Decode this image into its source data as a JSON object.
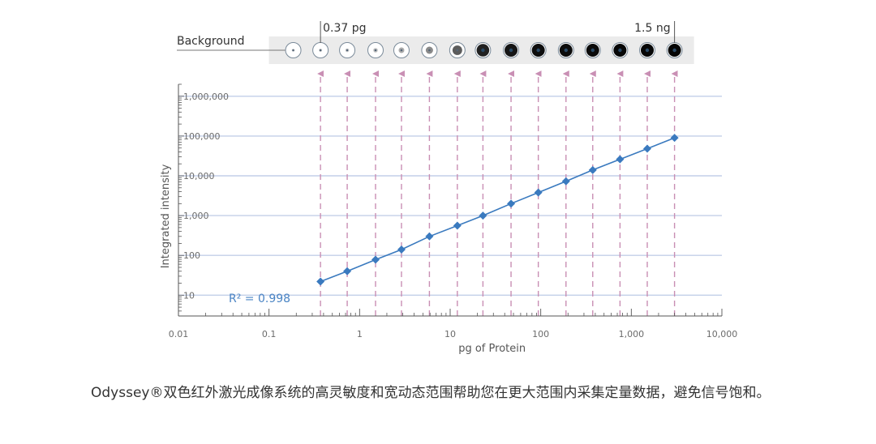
{
  "chart_data": {
    "type": "line",
    "xlabel": "pg of Protein",
    "ylabel": "Integrated intensity",
    "x_scale": "log",
    "y_scale": "log",
    "xlim": [
      0.01,
      10000
    ],
    "ylim": [
      3,
      2000000
    ],
    "x_ticks": [
      0.01,
      0.1,
      1,
      10,
      100,
      1000,
      10000
    ],
    "x_tick_labels": [
      "0.01",
      "0.1",
      "1",
      "10",
      "100",
      "1,000",
      "10,000"
    ],
    "y_ticks": [
      10,
      100,
      1000,
      10000,
      100000,
      1000000
    ],
    "y_tick_labels": [
      "10",
      "100",
      "1,000",
      "10,000",
      "100,000",
      "1,000,000"
    ],
    "grid": "horizontal",
    "series": [
      {
        "x": [
          0.37,
          0.73,
          1.5,
          2.9,
          5.9,
          12,
          23,
          47,
          94,
          190,
          375,
          750,
          1500,
          3000
        ],
        "y": [
          22,
          40,
          78,
          140,
          300,
          560,
          1000,
          2000,
          3800,
          7300,
          14000,
          26000,
          48000,
          90000
        ],
        "color": "#3a7abf"
      }
    ],
    "annotations": {
      "background_label": "Background",
      "low_label": "0.37 pg",
      "high_label": "1.5 ng",
      "r2_label": "R² = 0.998"
    }
  },
  "colors": {
    "series": "#3a7abf",
    "arrow": "#c98fb4",
    "grid": "#c3cfe8",
    "axis": "#555555",
    "strip": "#ebebeb"
  },
  "spots": [
    {
      "kind": "background",
      "intensity": 0.05
    },
    {
      "kind": "sample",
      "intensity": 0.08
    },
    {
      "kind": "sample",
      "intensity": 0.12
    },
    {
      "kind": "sample",
      "intensity": 0.18
    },
    {
      "kind": "sample",
      "intensity": 0.28
    },
    {
      "kind": "sample",
      "intensity": 0.42
    },
    {
      "kind": "sample",
      "intensity": 0.62
    },
    {
      "kind": "sample",
      "intensity": 0.88
    },
    {
      "kind": "sample",
      "intensity": 0.93
    },
    {
      "kind": "sample",
      "intensity": 0.96
    },
    {
      "kind": "sample",
      "intensity": 0.97
    },
    {
      "kind": "sample",
      "intensity": 0.98
    },
    {
      "kind": "sample",
      "intensity": 0.99
    },
    {
      "kind": "sample",
      "intensity": 0.99
    },
    {
      "kind": "sample",
      "intensity": 1.0
    }
  ],
  "caption": "Odyssey®双色红外激光成像系统的高灵敏度和宽动态范围帮助您在更大范围内采集定量数据，避免信号饱和。"
}
